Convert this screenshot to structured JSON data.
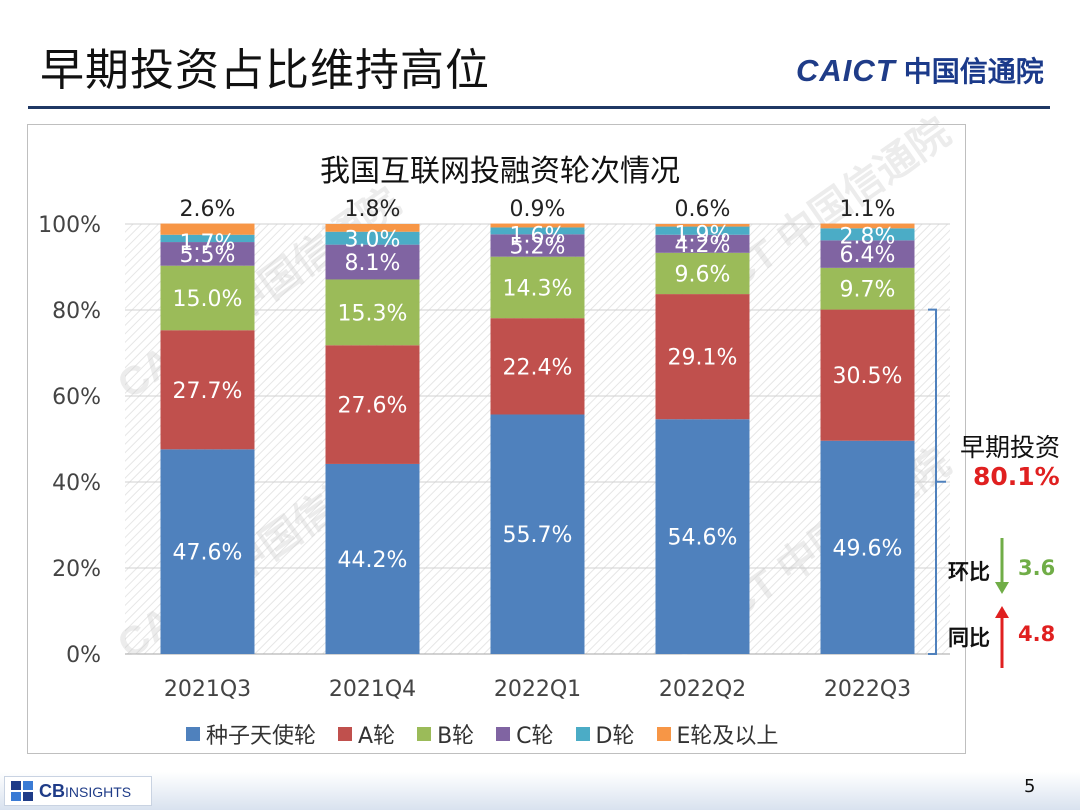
{
  "slide_title": "早期投资占比维持高位",
  "logo": {
    "en": "CAICT",
    "cn": "中国信通院"
  },
  "chart_data": {
    "type": "bar",
    "stacked": true,
    "title": "我国互联网投融资轮次情况",
    "categories": [
      "2021Q3",
      "2021Q4",
      "2022Q1",
      "2022Q2",
      "2022Q3"
    ],
    "series": [
      {
        "name": "种子天使轮",
        "color": "#4f81bd",
        "values": [
          47.6,
          44.2,
          55.7,
          54.6,
          49.6
        ],
        "labels": [
          "47.6%",
          "44.2%",
          "55.7%",
          "54.6%",
          "49.6%"
        ]
      },
      {
        "name": "A轮",
        "color": "#c0504d",
        "values": [
          27.7,
          27.6,
          22.4,
          29.1,
          30.5
        ],
        "labels": [
          "27.7%",
          "27.6%",
          "22.4%",
          "29.1%",
          "30.5%"
        ]
      },
      {
        "name": "B轮",
        "color": "#9bbb59",
        "values": [
          15.0,
          15.3,
          14.3,
          9.6,
          9.7
        ],
        "labels": [
          "15.0%",
          "15.3%",
          "14.3%",
          "9.6%",
          "9.7%"
        ]
      },
      {
        "name": "C轮",
        "color": "#8064a2",
        "values": [
          5.5,
          8.1,
          5.2,
          4.2,
          6.4
        ],
        "labels": [
          "5.5%",
          "8.1%",
          "5.2%",
          "4.2%",
          "6.4%"
        ]
      },
      {
        "name": "D轮",
        "color": "#4bacc6",
        "values": [
          1.7,
          3.0,
          1.6,
          1.9,
          2.8
        ],
        "labels": [
          "1.7%",
          "3.0%",
          "1.6%",
          "1.9%",
          "2.8%"
        ]
      },
      {
        "name": "E轮及以上",
        "color": "#f79646",
        "values": [
          2.6,
          1.8,
          0.9,
          0.6,
          1.1
        ],
        "labels": [
          "2.6%",
          "1.8%",
          "0.9%",
          "0.6%",
          "1.1%"
        ]
      }
    ],
    "ylim": [
      0,
      100
    ],
    "yticks": [
      "0%",
      "20%",
      "40%",
      "60%",
      "80%",
      "100%"
    ],
    "grid": true,
    "legend": "bottom",
    "watermark": "CAICT 中国信通院"
  },
  "annotations": {
    "early_label": "早期投资",
    "early_value": "80.1%",
    "qoq_label": "环比",
    "qoq_value": "3.6",
    "yoy_label": "同比",
    "yoy_value": "4.8"
  },
  "colors": {
    "up": "#e02020",
    "down": "#70ad47",
    "bracket": "#4f81bd"
  },
  "footer": {
    "brand": "CB",
    "brand_suffix": "INSIGHTS",
    "page": "5"
  }
}
